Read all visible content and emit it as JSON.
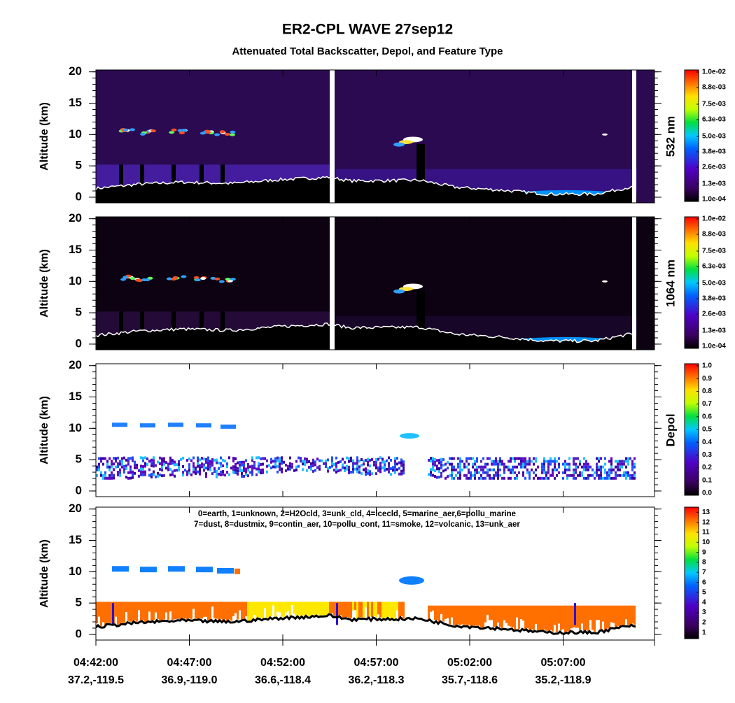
{
  "title": "ER2-CPL  WAVE  27sep12",
  "subtitle": "Attenuated Total Backscatter, Depol, and Feature Type",
  "chart_data": [
    {
      "type": "heatmap",
      "ylabel": "Altitude (km)",
      "ylim": [
        -0.9,
        20.3
      ],
      "yticks": [
        0,
        5,
        10,
        15,
        20
      ],
      "colorbar_label": "532 nm",
      "clim": [
        0.0001,
        0.01
      ],
      "colorbar_ticks": [
        {
          "value": 0.0001,
          "label": "1.0e-04"
        },
        {
          "value": 0.0013,
          "label": "1.3e-03"
        },
        {
          "value": 0.0026,
          "label": "2.6e-03"
        },
        {
          "value": 0.0038,
          "label": "3.8e-03"
        },
        {
          "value": 0.005,
          "label": "5.0e-03"
        },
        {
          "value": 0.0063,
          "label": "6.3e-03"
        },
        {
          "value": 0.0075,
          "label": "7.5e-03"
        },
        {
          "value": 0.0088,
          "label": "8.8e-03"
        },
        {
          "value": 0.01,
          "label": "1.0e-02"
        }
      ]
    },
    {
      "type": "heatmap",
      "ylabel": "Altitude (km)",
      "ylim": [
        -0.9,
        20.3
      ],
      "yticks": [
        0,
        5,
        10,
        15,
        20
      ],
      "colorbar_label": "1064 nm",
      "clim": [
        0.0001,
        0.01
      ],
      "colorbar_ticks": [
        {
          "value": 0.0001,
          "label": "1.0e-04"
        },
        {
          "value": 0.0013,
          "label": "1.3e-03"
        },
        {
          "value": 0.0026,
          "label": "2.6e-03"
        },
        {
          "value": 0.0038,
          "label": "3.8e-03"
        },
        {
          "value": 0.005,
          "label": "5.0e-03"
        },
        {
          "value": 0.0063,
          "label": "6.3e-03"
        },
        {
          "value": 0.0075,
          "label": "7.5e-03"
        },
        {
          "value": 0.0088,
          "label": "8.8e-03"
        },
        {
          "value": 0.01,
          "label": "1.0e-02"
        }
      ]
    },
    {
      "type": "heatmap",
      "ylabel": "Altitude (km)",
      "ylim": [
        -0.9,
        20.3
      ],
      "yticks": [
        0,
        5,
        10,
        15,
        20
      ],
      "colorbar_label": "Depol",
      "clim": [
        0,
        1
      ],
      "colorbar_ticks": [
        {
          "value": 0,
          "label": "0.0"
        },
        0.1,
        0.2,
        0.3,
        0.4,
        0.5,
        0.6,
        0.7,
        0.8,
        0.9,
        {
          "value": 1,
          "label": "1.0"
        }
      ]
    },
    {
      "type": "heatmap",
      "ylabel": "Altitude (km)",
      "ylim": [
        -0.9,
        20.3
      ],
      "yticks": [
        0,
        5,
        10,
        15,
        20
      ],
      "clim": [
        0.6,
        13.3
      ],
      "colorbar_ticks": [
        1,
        2,
        3,
        4,
        5,
        6,
        7,
        8,
        9,
        10,
        11,
        12,
        13
      ],
      "annotations": [
        "0=earth, 1=unknown, 2=H2Ocld, 3=unk_cld, 4=icecld, 5=marine_aer,6=pollu_marine",
        "7=dust, 8=dustmix, 9=contin_aer, 10=pollu_cont, 11=smoke, 12=volcanic, 13=unk_aer"
      ],
      "categories": [
        "04:42:00",
        "04:47:00",
        "04:52:00",
        "04:57:00",
        "05:02:00",
        "05:07:00"
      ],
      "category_locations": [
        "37.2,-119.5",
        "36.9,-119.0",
        "36.6,-118.4",
        "36.2,-118.3",
        "35.7,-118.6",
        "35.2,-118.9"
      ]
    }
  ]
}
